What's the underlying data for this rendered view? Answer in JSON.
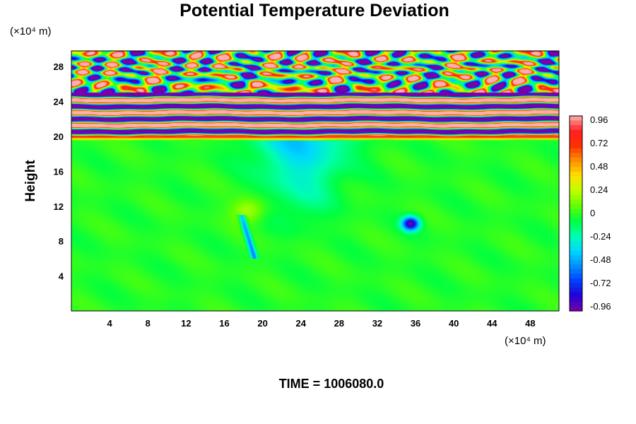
{
  "chart_data": {
    "type": "heatmap",
    "title": "Potential Temperature Deviation",
    "ylabel": "Height",
    "xlabel": "",
    "x_unit": "(×10⁴ m)",
    "y_unit": "(×10⁴ m)",
    "footer": "TIME = 1006080.0",
    "xlim": [
      0,
      51
    ],
    "ylim": [
      0,
      29.8
    ],
    "x_ticks": [
      4,
      8,
      12,
      16,
      20,
      24,
      28,
      32,
      36,
      40,
      44,
      48
    ],
    "y_ticks": [
      4,
      8,
      12,
      16,
      20,
      24,
      28
    ],
    "colorbar": {
      "range": [
        -1.0,
        1.0
      ],
      "ticks": [
        "0.96",
        "0.72",
        "0.48",
        "0.24",
        "0",
        "-0.24",
        "-0.48",
        "-0.72",
        "-0.96"
      ],
      "palette": [
        "#7a00a8",
        "#2200d8",
        "#0040ff",
        "#0090ff",
        "#00d8ff",
        "#00ffb0",
        "#00ff40",
        "#60ff00",
        "#c0ff00",
        "#ffe000",
        "#ff9000",
        "#ff3000",
        "#ff2020",
        "#ffb0b0"
      ]
    },
    "field_features": {
      "background_value": -0.02,
      "upper_layer_z": [
        19.5,
        29.8
      ],
      "upper_layer_amplitude": 1.0,
      "negative_plume_center": [
        24,
        16
      ],
      "negative_plume_value": -0.4,
      "strong_negative_spot": [
        35.5,
        10
      ],
      "strong_negative_value": -0.96,
      "positive_spot": [
        18.5,
        11.5
      ],
      "positive_value": 0.24
    }
  }
}
